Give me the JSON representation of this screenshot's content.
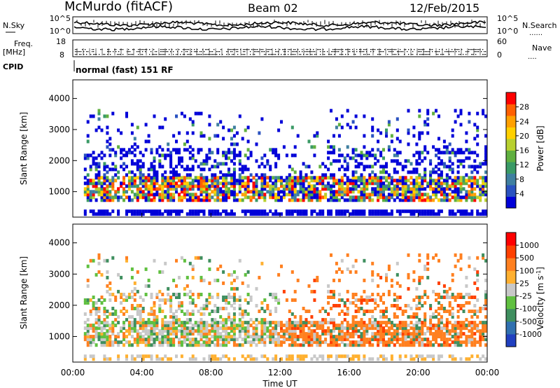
{
  "header": {
    "station": "McMurdo (fitACF)",
    "beam": "Beam 02",
    "date": "12/Feb/2015"
  },
  "top_panels": {
    "nsky_label": "N.Sky",
    "nsearch_label": "N.Search",
    "nsearch_dots": "......",
    "freq_label_1": "Freq.",
    "freq_label_2": "[MHz]",
    "nave_label": "Nave",
    "nave_dots": "....",
    "cpid_label": "CPID",
    "cpid_value": "normal (fast) 151 RF",
    "noise_ticks_left": [
      "10^5",
      "10^0"
    ],
    "noise_ticks_right": [
      "10^5",
      "10^0"
    ],
    "freq_ticks": [
      "18",
      "8"
    ],
    "nave_ticks": [
      "60",
      "0"
    ]
  },
  "chart_data": [
    {
      "type": "heatmap",
      "panel": "power",
      "ylabel": "Slant Range [km]",
      "ylim": [
        180,
        4600
      ],
      "yticks": [
        "1000",
        "2000",
        "3000",
        "4000"
      ],
      "ytick_values": [
        1000,
        2000,
        3000,
        4000
      ],
      "xlim": [
        0,
        24
      ],
      "colorbar": {
        "label": "Power [dB]",
        "range": [
          0,
          32
        ],
        "tick_labels": [
          "4",
          "8",
          "12",
          "16",
          "20",
          "24",
          "28"
        ],
        "tick_values": [
          4,
          8,
          12,
          16,
          20,
          24,
          28
        ],
        "colors": [
          "#0000d8",
          "#2a52c0",
          "#3f7fa0",
          "#3a9a66",
          "#60b040",
          "#b8d030",
          "#ffd000",
          "#ffa000",
          "#ff6000",
          "#ff0000"
        ]
      }
    },
    {
      "type": "heatmap",
      "panel": "velocity",
      "ylabel": "Slant Range [km]",
      "ylim": [
        180,
        4600
      ],
      "yticks": [
        "1000",
        "2000",
        "3000",
        "4000"
      ],
      "ytick_values": [
        1000,
        2000,
        3000,
        4000
      ],
      "xlim": [
        0,
        24
      ],
      "xticks": [
        "00:00",
        "04:00",
        "08:00",
        "12:00",
        "16:00",
        "20:00",
        "00:00"
      ],
      "xtick_values": [
        0,
        4,
        8,
        12,
        16,
        20,
        24
      ],
      "xlabel": "Time UT",
      "colorbar": {
        "label": "Velocity [m s",
        "label_sup": "-1",
        "label_end": "]",
        "tick_labels": [
          "1000",
          "500",
          "100",
          "25",
          "-25",
          "-100",
          "-500",
          "-1000"
        ],
        "colors": [
          "#2040c0",
          "#3070b0",
          "#3f8f5f",
          "#60c040",
          "#c8c8c8",
          "#ffb030",
          "#ff8020",
          "#ff4000",
          "#ff0000"
        ]
      }
    }
  ]
}
